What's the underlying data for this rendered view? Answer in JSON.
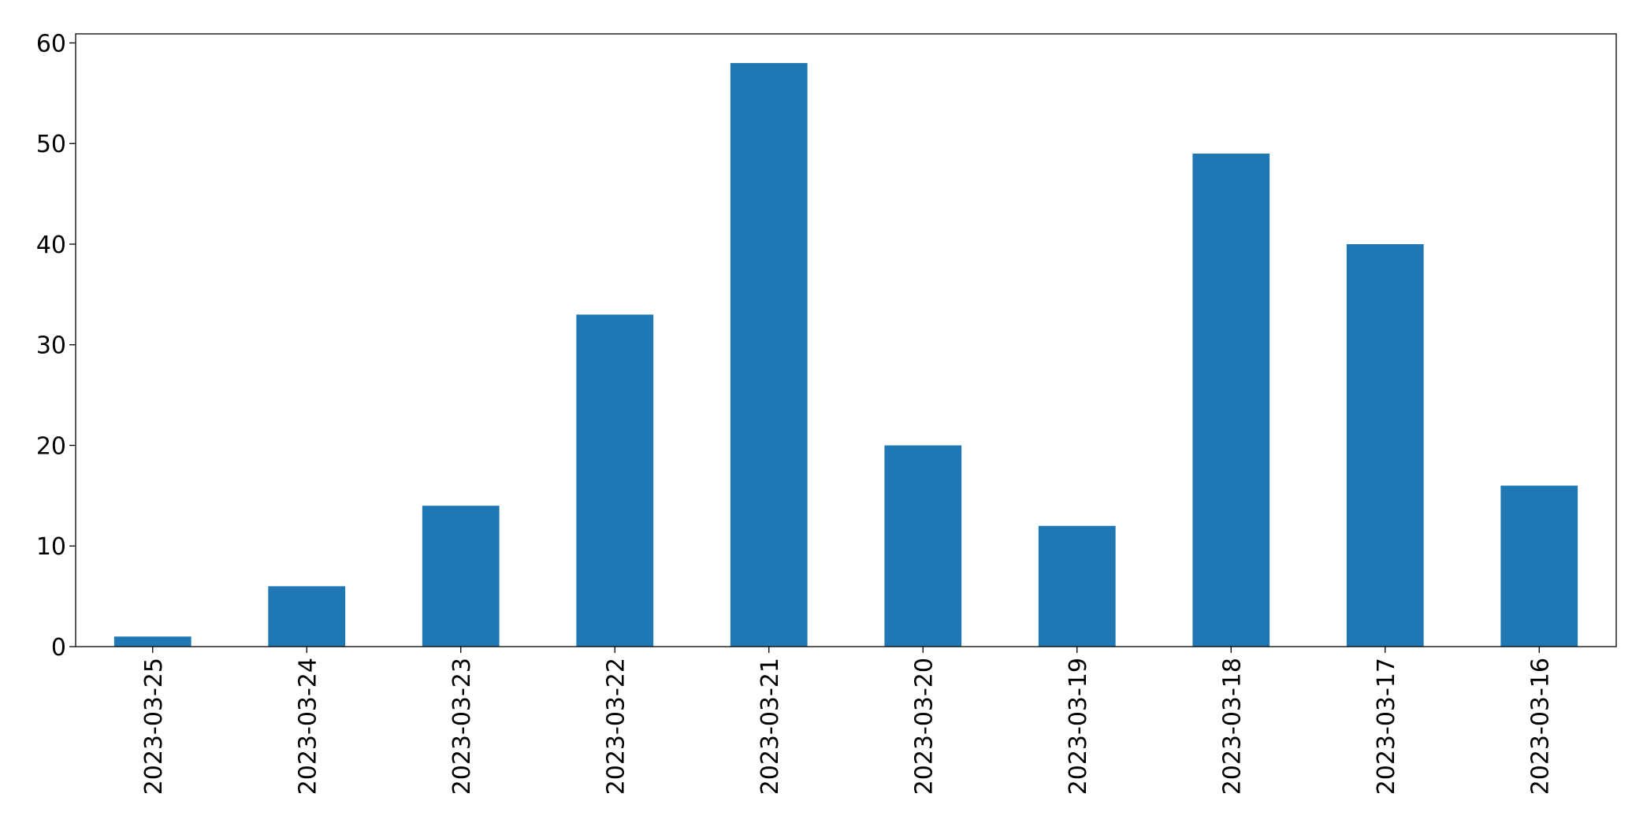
{
  "chart_data": {
    "type": "bar",
    "categories": [
      "2023-03-25",
      "2023-03-24",
      "2023-03-23",
      "2023-03-22",
      "2023-03-21",
      "2023-03-20",
      "2023-03-19",
      "2023-03-18",
      "2023-03-17",
      "2023-03-16"
    ],
    "values": [
      1,
      6,
      14,
      33,
      58,
      20,
      12,
      49,
      40,
      16
    ],
    "color": "#1f77b4",
    "ylim": [
      0,
      60.9
    ],
    "yticks": [
      0,
      10,
      20,
      30,
      40,
      50,
      60
    ],
    "grid": false
  }
}
